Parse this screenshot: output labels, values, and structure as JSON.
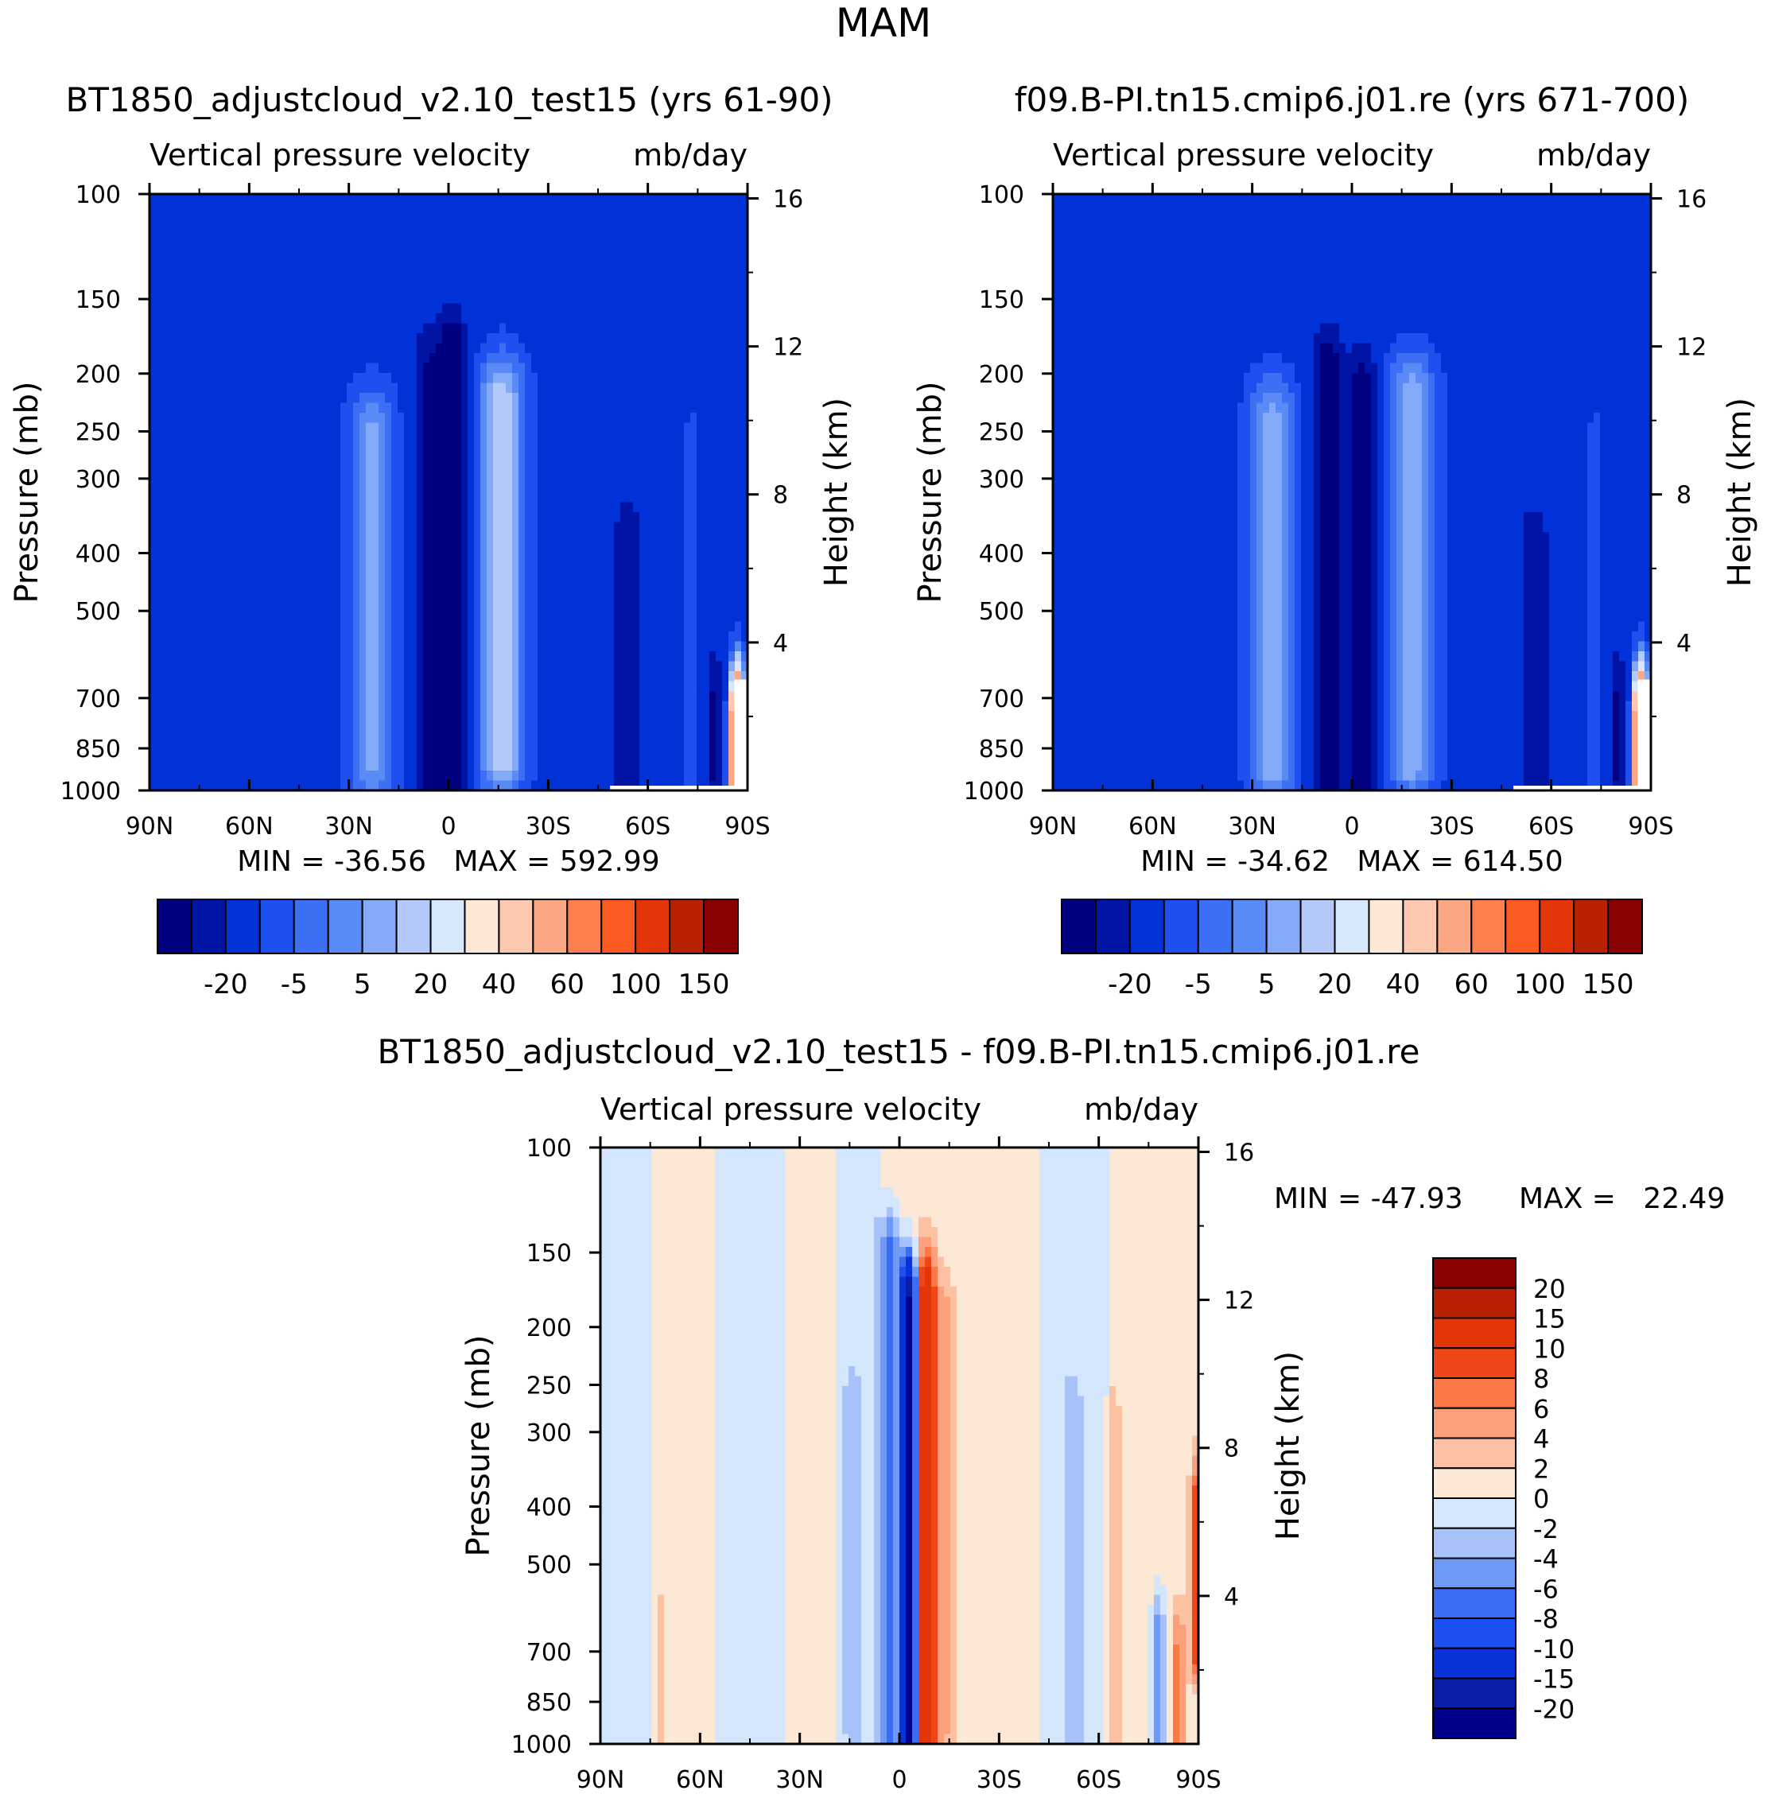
{
  "page_title": "MAM",
  "colors": {
    "abs_levels": [
      "#000080",
      "#0014a6",
      "#0032d8",
      "#1e4fef",
      "#3c6ff3",
      "#5a8af5",
      "#84a9f7",
      "#b2c9f9",
      "#d7e8fc",
      "#fde8d5",
      "#fcc8b0",
      "#fca783",
      "#fd7f4d",
      "#fb5a21",
      "#e33508",
      "#b82202",
      "#8b0000"
    ],
    "diff_levels": [
      "#00008b",
      "#0a1ea8",
      "#0a32d8",
      "#1e4ff0",
      "#3a6cf4",
      "#6f99f6",
      "#a7c1f9",
      "#d4e6fc",
      "#fde8d5",
      "#fcc0a2",
      "#fca07b",
      "#fd7847",
      "#ee4617",
      "#e33508",
      "#b82202",
      "#8b0000"
    ],
    "mask": "#ffffff"
  },
  "chart_data": [
    {
      "id": "panel-left",
      "type": "heatmap",
      "case_title": "BT1850_adjustcloud_v2.10_test15 (yrs 61-90)",
      "title": "Vertical pressure velocity",
      "units": "mb/day",
      "ylabel": "Pressure (mb)",
      "ylabel_right": "Height (km)",
      "x_ticks": [
        "90N",
        "60N",
        "30N",
        "0",
        "30S",
        "60S",
        "90S"
      ],
      "x_values": [
        90,
        60,
        30,
        0,
        -30,
        -60,
        -90
      ],
      "y_ticks": [
        100,
        150,
        200,
        250,
        300,
        400,
        500,
        700,
        850,
        1000
      ],
      "ylim": [
        1000,
        100
      ],
      "height_ticks": [
        4,
        8,
        12,
        16
      ],
      "min_text": "MIN = -36.56",
      "max_text": "MAX = 592.99",
      "stats_text": "MIN = -36.56   MAX = 592.99",
      "colorbar_levels": [
        -30,
        -20,
        -10,
        -5,
        0,
        5,
        10,
        20,
        30,
        40,
        50,
        60,
        80,
        100,
        120,
        150
      ],
      "colorbar_labels": [
        "-20",
        "-5",
        "5",
        "20",
        "40",
        "60",
        "100",
        "150"
      ],
      "features": [
        {
          "lat": -1,
          "amp": -36,
          "width": 4,
          "top": 190,
          "bottom": 960
        },
        {
          "lat": 5,
          "amp": -26,
          "width": 4,
          "top": 220,
          "bottom": 960
        },
        {
          "lat": -16,
          "amp": 25,
          "width": 7,
          "top": 220,
          "bottom": 900
        },
        {
          "lat": 23,
          "amp": 18,
          "width": 7,
          "top": 250,
          "bottom": 920
        },
        {
          "lat": 8,
          "amp": -6,
          "width": 4,
          "top": 150,
          "bottom": 900
        },
        {
          "lat": -54,
          "amp": -14,
          "width": 5,
          "top": 380,
          "bottom": 990
        },
        {
          "lat": -73,
          "amp": 3,
          "width": 3,
          "top": 250,
          "bottom": 1000
        },
        {
          "lat": -87,
          "amp": 150,
          "width": 2,
          "top": 760,
          "bottom": 1000
        },
        {
          "lat": -80,
          "amp": -20,
          "width": 2,
          "top": 700,
          "bottom": 950
        },
        {
          "lat": 48,
          "amp": -8,
          "width": 3,
          "top": 450,
          "bottom": 1000
        },
        {
          "lat": 70,
          "amp": -3,
          "width": 5,
          "top": 400,
          "bottom": 1000
        },
        {
          "lat": 78,
          "amp": 1,
          "width": 4,
          "top": 200,
          "bottom": 600
        },
        {
          "lat": -38,
          "amp": 1,
          "width": 12,
          "top": 100,
          "bottom": 130
        },
        {
          "lat": 40,
          "amp": 1,
          "width": 12,
          "top": 100,
          "bottom": 140
        }
      ],
      "base_value": -12.5
    },
    {
      "id": "panel-right",
      "type": "heatmap",
      "case_title": "f09.B-PI.tn15.cmip6.j01.re (yrs 671-700)",
      "title": "Vertical pressure velocity",
      "units": "mb/day",
      "ylabel": "Pressure (mb)",
      "ylabel_right": "Height (km)",
      "x_ticks": [
        "90N",
        "60N",
        "30N",
        "0",
        "30S",
        "60S",
        "90S"
      ],
      "x_values": [
        90,
        60,
        30,
        0,
        -30,
        -60,
        -90
      ],
      "y_ticks": [
        100,
        150,
        200,
        250,
        300,
        400,
        500,
        700,
        850,
        1000
      ],
      "ylim": [
        1000,
        100
      ],
      "height_ticks": [
        4,
        8,
        12,
        16
      ],
      "min_text": "MIN = -34.62",
      "max_text": "MAX = 614.50",
      "stats_text": "MIN = -34.62   MAX = 614.50",
      "colorbar_levels": [
        -30,
        -20,
        -10,
        -5,
        0,
        5,
        10,
        20,
        30,
        40,
        50,
        60,
        80,
        100,
        120,
        150
      ],
      "colorbar_labels": [
        "-20",
        "-5",
        "5",
        "20",
        "40",
        "60",
        "100",
        "150"
      ],
      "features": [
        {
          "lat": -3,
          "amp": -32,
          "width": 4,
          "top": 220,
          "bottom": 960
        },
        {
          "lat": 7,
          "amp": -30,
          "width": 4,
          "top": 200,
          "bottom": 960
        },
        {
          "lat": -18,
          "amp": 22,
          "width": 7,
          "top": 220,
          "bottom": 900
        },
        {
          "lat": 24,
          "amp": 20,
          "width": 7,
          "top": 240,
          "bottom": 920
        },
        {
          "lat": -55,
          "amp": -12,
          "width": 5,
          "top": 380,
          "bottom": 990
        },
        {
          "lat": -73,
          "amp": 3,
          "width": 3,
          "top": 250,
          "bottom": 1000
        },
        {
          "lat": -87,
          "amp": 150,
          "width": 2,
          "top": 760,
          "bottom": 1000
        },
        {
          "lat": -80,
          "amp": -20,
          "width": 2,
          "top": 700,
          "bottom": 950
        },
        {
          "lat": 48,
          "amp": -7,
          "width": 3,
          "top": 450,
          "bottom": 1000
        },
        {
          "lat": 70,
          "amp": -3,
          "width": 5,
          "top": 400,
          "bottom": 1000
        },
        {
          "lat": 78,
          "amp": 1,
          "width": 4,
          "top": 200,
          "bottom": 600
        },
        {
          "lat": -38,
          "amp": 1,
          "width": 12,
          "top": 100,
          "bottom": 130
        },
        {
          "lat": 40,
          "amp": 1,
          "width": 12,
          "top": 100,
          "bottom": 140
        }
      ],
      "base_value": -12.5
    },
    {
      "id": "panel-diff",
      "type": "heatmap",
      "case_title": "BT1850_adjustcloud_v2.10_test15 - f09.B-PI.tn15.cmip6.j01.re",
      "title": "Vertical pressure velocity",
      "units": "mb/day",
      "ylabel": "Pressure (mb)",
      "ylabel_right": "Height (km)",
      "x_ticks": [
        "90N",
        "60N",
        "30N",
        "0",
        "30S",
        "60S",
        "90S"
      ],
      "x_values": [
        90,
        60,
        30,
        0,
        -30,
        -60,
        -90
      ],
      "y_ticks": [
        100,
        150,
        200,
        250,
        300,
        400,
        500,
        700,
        850,
        1000
      ],
      "ylim": [
        1000,
        100
      ],
      "height_ticks": [
        4,
        8,
        12,
        16
      ],
      "min_text": "MIN = -47.93",
      "max_text": "MAX =   22.49",
      "stats_text": "MIN = -47.93   MAX =   22.49",
      "colorbar_levels": [
        -20,
        -15,
        -10,
        -8,
        -6,
        -4,
        -2,
        0,
        2,
        4,
        6,
        8,
        10,
        15,
        20
      ],
      "colorbar_labels": [
        "20",
        "15",
        "10",
        "8",
        "6",
        "4",
        "2",
        "0",
        "-2",
        "-4",
        "-6",
        "-8",
        "-10",
        "-15",
        "-20"
      ],
      "features": [
        {
          "lat": -3,
          "amp": -22,
          "width": 2.5,
          "top": 180,
          "bottom": 980
        },
        {
          "lat": 3,
          "amp": -8,
          "width": 3,
          "top": 150,
          "bottom": 980
        },
        {
          "lat": -8,
          "amp": 14,
          "width": 3,
          "top": 175,
          "bottom": 980
        },
        {
          "lat": -14,
          "amp": 4,
          "width": 3,
          "top": 200,
          "bottom": 900
        },
        {
          "lat": 14,
          "amp": -2.5,
          "width": 3,
          "top": 280,
          "bottom": 900
        },
        {
          "lat": -52,
          "amp": -3,
          "width": 3,
          "top": 290,
          "bottom": 950
        },
        {
          "lat": -64,
          "amp": 2.5,
          "width": 3,
          "top": 300,
          "bottom": 1000
        },
        {
          "lat": -78,
          "amp": -6,
          "width": 2,
          "top": 650,
          "bottom": 950
        },
        {
          "lat": -84,
          "amp": 6,
          "width": 2,
          "top": 700,
          "bottom": 980
        },
        {
          "lat": -89,
          "amp": 8,
          "width": 1.5,
          "top": 400,
          "bottom": 700
        },
        {
          "lat": 72,
          "amp": 2,
          "width": 2,
          "top": 650,
          "bottom": 950
        }
      ],
      "bands": [
        {
          "from": 90,
          "to": 75,
          "value": -1
        },
        {
          "from": 75,
          "to": 56,
          "value": 1
        },
        {
          "from": 56,
          "to": 35,
          "value": -1
        },
        {
          "from": 35,
          "to": 20,
          "value": 1
        },
        {
          "from": 20,
          "to": 5,
          "value": -1
        },
        {
          "from": 5,
          "to": -25,
          "value": 1
        },
        {
          "from": -25,
          "to": -43,
          "value": 1
        },
        {
          "from": -43,
          "to": -64,
          "value": -1
        },
        {
          "from": -64,
          "to": -90,
          "value": 1
        }
      ],
      "base_value": 1
    }
  ]
}
